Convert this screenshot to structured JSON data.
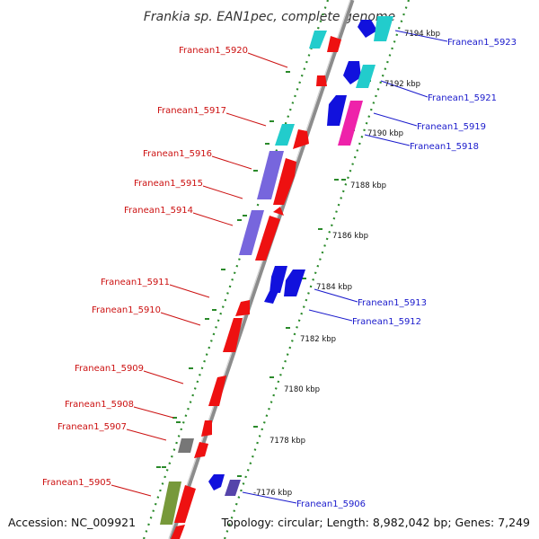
{
  "title": "Frankia sp. EAN1pec, complete genome",
  "accession": "Accession: NC_009921",
  "summary": "Topology: circular; Length: 8,982,042 bp; Genes: 7,249",
  "ticks": [
    {
      "label": "7194 kbp",
      "pos": 7194
    },
    {
      "label": "7192 kbp",
      "pos": 7192
    },
    {
      "label": "7190 kbp",
      "pos": 7190
    },
    {
      "label": "7188 kbp",
      "pos": 7188
    },
    {
      "label": "7186 kbp",
      "pos": 7186
    },
    {
      "label": "7184 kbp",
      "pos": 7184
    },
    {
      "label": "7182 kbp",
      "pos": 7182
    },
    {
      "label": "7180 kbp",
      "pos": 7180
    },
    {
      "label": "7178 kbp",
      "pos": 7178
    },
    {
      "label": "7176 kbp",
      "pos": 7176
    }
  ],
  "labels": [
    {
      "name": "Franean1_5923",
      "side": "right",
      "color": "#1a1acc"
    },
    {
      "name": "Franean1_5921",
      "side": "right",
      "color": "#1a1acc"
    },
    {
      "name": "Franean1_5919",
      "side": "right",
      "color": "#1a1acc"
    },
    {
      "name": "Franean1_5918",
      "side": "right",
      "color": "#1a1acc"
    },
    {
      "name": "Franean1_5913",
      "side": "right",
      "color": "#1a1acc"
    },
    {
      "name": "Franean1_5912",
      "side": "right",
      "color": "#1a1acc"
    },
    {
      "name": "Franean1_5906",
      "side": "right",
      "color": "#1a1acc"
    },
    {
      "name": "Franean1_5920",
      "side": "left",
      "color": "#cc1111"
    },
    {
      "name": "Franean1_5917",
      "side": "left",
      "color": "#cc1111"
    },
    {
      "name": "Franean1_5916",
      "side": "left",
      "color": "#cc1111"
    },
    {
      "name": "Franean1_5915",
      "side": "left",
      "color": "#cc1111"
    },
    {
      "name": "Franean1_5914",
      "side": "left",
      "color": "#cc1111"
    },
    {
      "name": "Franean1_5911",
      "side": "left",
      "color": "#cc1111"
    },
    {
      "name": "Franean1_5910",
      "side": "left",
      "color": "#cc1111"
    },
    {
      "name": "Franean1_5909",
      "side": "left",
      "color": "#cc1111"
    },
    {
      "name": "Franean1_5908",
      "side": "left",
      "color": "#cc1111"
    },
    {
      "name": "Franean1_5907",
      "side": "left",
      "color": "#cc1111"
    },
    {
      "name": "Franean1_5905",
      "side": "left",
      "color": "#cc1111"
    }
  ],
  "colors": {
    "backbone": "#8c8c8c",
    "dots": "#2a8a2a",
    "forward_gene": "#ee1111",
    "reverse_gene": "#1111dd",
    "cyan_gene": "#22cccc",
    "purple_gene": "#7766dd",
    "magenta_gene": "#ee22aa",
    "olive_gene": "#77993a",
    "grey_gene": "#777777"
  }
}
